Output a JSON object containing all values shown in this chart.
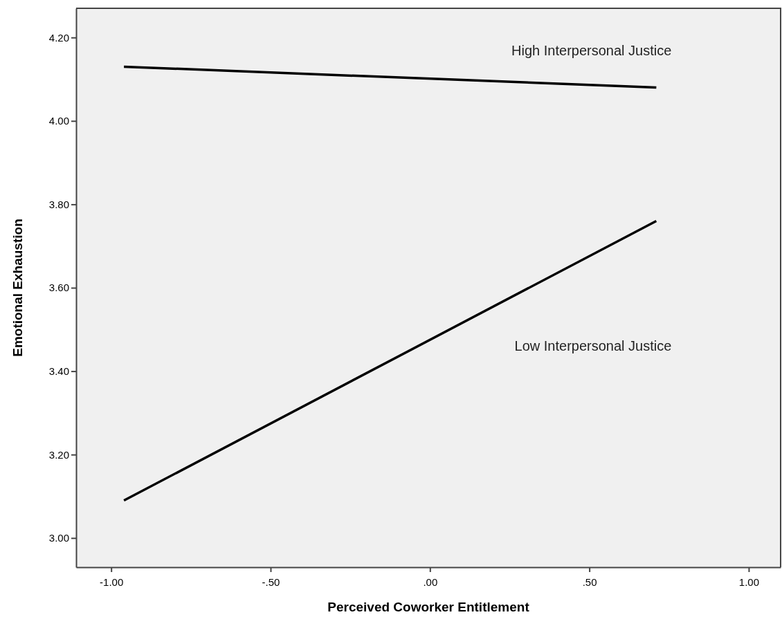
{
  "chart_data": {
    "type": "line",
    "xlabel": "Perceived Coworker Entitlement",
    "ylabel": "Emotional Exhaustion",
    "xlim": [
      -1.11,
      1.1
    ],
    "ylim": [
      2.93,
      4.27
    ],
    "xticks": [
      {
        "value": -1,
        "label": "-1.00"
      },
      {
        "value": -0.5,
        "label": "-.50"
      },
      {
        "value": 0,
        "label": ".00"
      },
      {
        "value": 0.5,
        "label": ".50"
      },
      {
        "value": 1,
        "label": "1.00"
      }
    ],
    "yticks": [
      {
        "value": 3,
        "label": "3.00"
      },
      {
        "value": 3.2,
        "label": "3.20"
      },
      {
        "value": 3.4,
        "label": "3.40"
      },
      {
        "value": 3.6,
        "label": "3.60"
      },
      {
        "value": 3.8,
        "label": "3.80"
      },
      {
        "value": 4,
        "label": "4.00"
      },
      {
        "value": 4.2,
        "label": "4.20"
      }
    ],
    "x": [
      -0.96,
      0.71
    ],
    "series": [
      {
        "name": "High Interpersonal Justice",
        "color": "#000000",
        "values": [
          4.13,
          4.08
        ]
      },
      {
        "name": "Low Interpersonal Justice",
        "color": "#000000",
        "values": [
          3.09,
          3.76
        ]
      }
    ],
    "grid": false,
    "legend": false,
    "marker": "none",
    "line_style": "solid"
  }
}
